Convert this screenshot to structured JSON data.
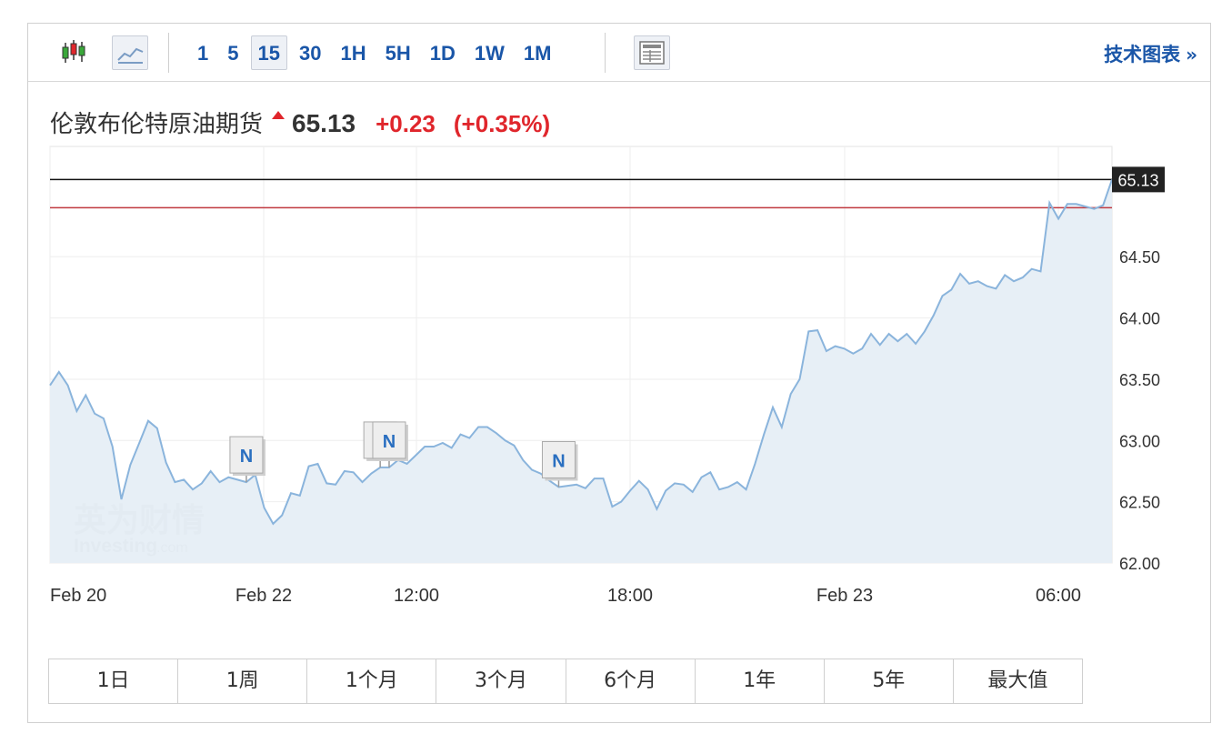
{
  "toolbar": {
    "chart_type_icons": [
      "candlestick-icon",
      "area-chart-icon"
    ],
    "intervals": [
      "1",
      "5",
      "15",
      "30",
      "1H",
      "5H",
      "1D",
      "1W",
      "1M"
    ],
    "selected_interval": "15",
    "table_icon": "table-view-icon",
    "tech_chart_label": "技术图表",
    "tech_chart_chevron": "»"
  },
  "quote": {
    "name": "伦敦布伦特原油期货",
    "price": "65.13",
    "change": "+0.23",
    "change_pct": "(+0.35%)",
    "up_color": "#e0262c"
  },
  "watermark": {
    "cn": "英为财情",
    "en": "Investing",
    "suffix": ".com"
  },
  "ranges": [
    "1日",
    "1周",
    "1个月",
    "3个月",
    "6个月",
    "1年",
    "5年",
    "最大值"
  ],
  "chart_data": {
    "type": "area",
    "title": "",
    "xlabel": "",
    "ylabel": "",
    "ylim": [
      62.0,
      65.4
    ],
    "y_ticks": [
      "64.50",
      "64.00",
      "63.50",
      "63.00",
      "62.50",
      "62.00"
    ],
    "x_ticks": [
      "Feb 20",
      "Feb 22",
      "12:00",
      "18:00",
      "Feb 23",
      "06:00"
    ],
    "last_price_label": "65.13",
    "last_price": 65.13,
    "prev_close": 64.9,
    "line_color": "#8ab4dc",
    "fill_color": "#e6eef6",
    "news_marker_label": "N",
    "news_markers_at_index": [
      22,
      37,
      38,
      57
    ],
    "series": [
      {
        "values": [
          63.45,
          63.56,
          63.45,
          63.24,
          63.37,
          63.22,
          63.18,
          62.95,
          62.52,
          62.8,
          62.98,
          63.16,
          63.1,
          62.82,
          62.66,
          62.68,
          62.6,
          62.65,
          62.75,
          62.66,
          62.7,
          62.68,
          62.66,
          62.72,
          62.45,
          62.32,
          62.39,
          62.57,
          62.55,
          62.79,
          62.81,
          62.65,
          62.64,
          62.75,
          62.74,
          62.66,
          62.73,
          62.78,
          62.78,
          62.84,
          62.81,
          62.88,
          62.95,
          62.95,
          62.98,
          62.94,
          63.05,
          63.02,
          63.11,
          63.11,
          63.06,
          63.0,
          62.96,
          62.84,
          62.76,
          62.73,
          62.67,
          62.62,
          62.63,
          62.64,
          62.61,
          62.69,
          62.69,
          62.46,
          62.5,
          62.59,
          62.67,
          62.6,
          62.44,
          62.59,
          62.65,
          62.64,
          62.58,
          62.7,
          62.74,
          62.6,
          62.62,
          62.66,
          62.6,
          62.81,
          63.05,
          63.27,
          63.11,
          63.38,
          63.5,
          63.89,
          63.9,
          63.73,
          63.77,
          63.75,
          63.71,
          63.75,
          63.87,
          63.78,
          63.87,
          63.81,
          63.87,
          63.79,
          63.89,
          64.02,
          64.18,
          64.23,
          64.36,
          64.28,
          64.3,
          64.26,
          64.24,
          64.35,
          64.3,
          64.33,
          64.4,
          64.38,
          64.94,
          64.81,
          64.93,
          64.93,
          64.91,
          64.89,
          64.92,
          65.13
        ]
      }
    ]
  }
}
